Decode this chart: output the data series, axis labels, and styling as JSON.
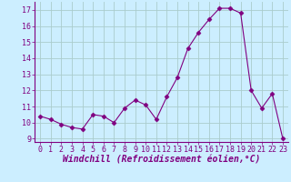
{
  "x": [
    0,
    1,
    2,
    3,
    4,
    5,
    6,
    7,
    8,
    9,
    10,
    11,
    12,
    13,
    14,
    15,
    16,
    17,
    18,
    19,
    20,
    21,
    22,
    23
  ],
  "y": [
    10.4,
    10.2,
    9.9,
    9.7,
    9.6,
    10.5,
    10.4,
    10.0,
    10.9,
    11.4,
    11.1,
    10.2,
    11.6,
    12.8,
    14.6,
    15.6,
    16.4,
    17.1,
    17.1,
    16.8,
    12.0,
    10.9,
    11.8,
    9.0
  ],
  "xlim": [
    -0.5,
    23.5
  ],
  "ylim": [
    8.8,
    17.5
  ],
  "yticks": [
    9,
    10,
    11,
    12,
    13,
    14,
    15,
    16,
    17
  ],
  "xticks": [
    0,
    1,
    2,
    3,
    4,
    5,
    6,
    7,
    8,
    9,
    10,
    11,
    12,
    13,
    14,
    15,
    16,
    17,
    18,
    19,
    20,
    21,
    22,
    23
  ],
  "xlabel": "Windchill (Refroidissement éolien,°C)",
  "line_color": "#800080",
  "marker": "D",
  "marker_size": 2.5,
  "bg_color": "#cceeff",
  "grid_color": "#aacccc",
  "label_fontsize": 7,
  "tick_fontsize": 6
}
